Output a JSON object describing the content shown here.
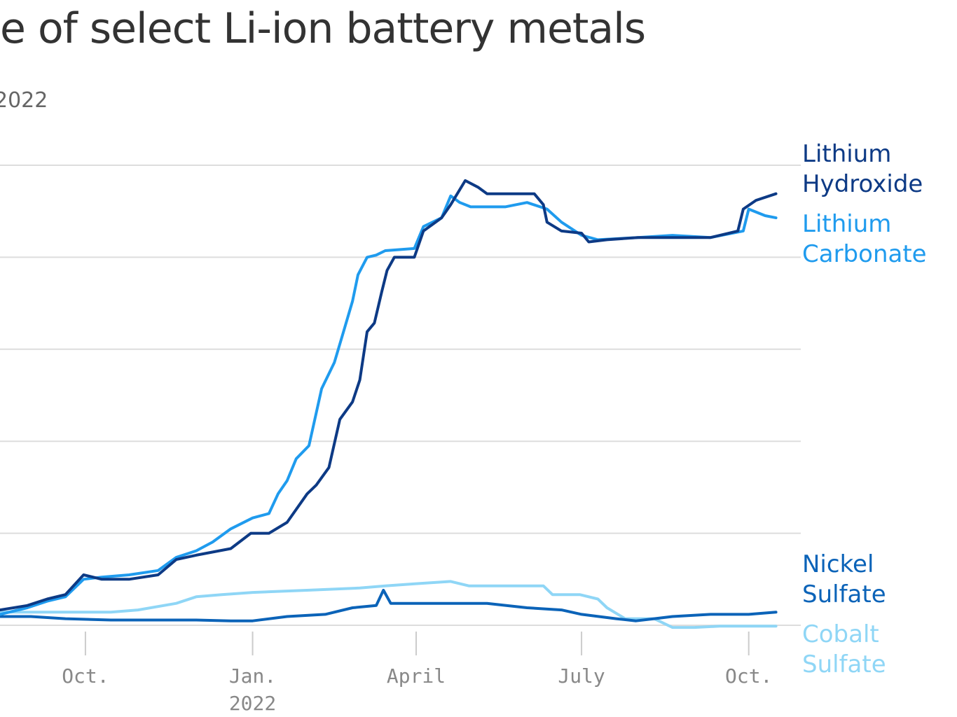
{
  "title": "ce of select Li-ion battery metals",
  "subtitle": "2022",
  "chart_data": {
    "type": "line",
    "title": "ce of select Li-ion battery metals",
    "subtitle": "2022",
    "xlabel": "",
    "ylabel": "",
    "grid": true,
    "legend": "right, labels at line ends",
    "y_gridlines": 6,
    "ylim": [
      0,
      105
    ],
    "xlim": [
      "2021-08-15",
      "2022-10-20"
    ],
    "x_ticks": [
      {
        "date": "2021-10-01",
        "label": "Oct.",
        "sublabel": ""
      },
      {
        "date": "2022-01-01",
        "label": "Jan.",
        "sublabel": "2022"
      },
      {
        "date": "2022-04-01",
        "label": "April",
        "sublabel": ""
      },
      {
        "date": "2022-07-01",
        "label": "July",
        "sublabel": ""
      },
      {
        "date": "2022-10-01",
        "label": "Oct.",
        "sublabel": ""
      }
    ],
    "series": [
      {
        "name": "Lithium Hydroxide",
        "label_lines": [
          "Lithium",
          "Hydroxide"
        ],
        "color": "#0d3a85",
        "points": [
          [
            "2021-08-15",
            3.5
          ],
          [
            "2021-08-30",
            4.5
          ],
          [
            "2021-09-10",
            6
          ],
          [
            "2021-09-20",
            7
          ],
          [
            "2021-09-30",
            11.5
          ],
          [
            "2021-10-10",
            10.5
          ],
          [
            "2021-10-25",
            10.5
          ],
          [
            "2021-11-10",
            11.5
          ],
          [
            "2021-11-20",
            15
          ],
          [
            "2021-12-01",
            16
          ],
          [
            "2021-12-20",
            17.5
          ],
          [
            "2021-12-31",
            21
          ],
          [
            "2022-01-10",
            21
          ],
          [
            "2022-01-20",
            23.5
          ],
          [
            "2022-01-31",
            30
          ],
          [
            "2022-02-05",
            32
          ],
          [
            "2022-02-12",
            36
          ],
          [
            "2022-02-18",
            47
          ],
          [
            "2022-02-25",
            51
          ],
          [
            "2022-03-01",
            56
          ],
          [
            "2022-03-05",
            67
          ],
          [
            "2022-03-09",
            69
          ],
          [
            "2022-03-13",
            76
          ],
          [
            "2022-03-16",
            81
          ],
          [
            "2022-03-20",
            84
          ],
          [
            "2022-03-31",
            84
          ],
          [
            "2022-04-05",
            90
          ],
          [
            "2022-04-15",
            93
          ],
          [
            "2022-04-20",
            96
          ],
          [
            "2022-04-28",
            101.5
          ],
          [
            "2022-05-05",
            100
          ],
          [
            "2022-05-10",
            98.5
          ],
          [
            "2022-06-05",
            98.5
          ],
          [
            "2022-06-10",
            96
          ],
          [
            "2022-06-12",
            92
          ],
          [
            "2022-06-20",
            90
          ],
          [
            "2022-07-01",
            89.5
          ],
          [
            "2022-07-05",
            87.5
          ],
          [
            "2022-07-15",
            88
          ],
          [
            "2022-08-01",
            88.5
          ],
          [
            "2022-08-20",
            88.5
          ],
          [
            "2022-09-10",
            88.5
          ],
          [
            "2022-09-25",
            90
          ],
          [
            "2022-09-28",
            95
          ],
          [
            "2022-10-05",
            97
          ],
          [
            "2022-10-16",
            98.5
          ]
        ]
      },
      {
        "name": "Lithium Carbonate",
        "label_lines": [
          "Lithium",
          "Carbonate"
        ],
        "color": "#1f9bee",
        "points": [
          [
            "2021-08-15",
            2.5
          ],
          [
            "2021-08-30",
            4
          ],
          [
            "2021-09-10",
            5.5
          ],
          [
            "2021-09-20",
            6.5
          ],
          [
            "2021-09-30",
            10.5
          ],
          [
            "2021-10-10",
            11
          ],
          [
            "2021-10-25",
            11.5
          ],
          [
            "2021-11-10",
            12.5
          ],
          [
            "2021-11-20",
            15.5
          ],
          [
            "2021-12-01",
            17
          ],
          [
            "2021-12-10",
            19
          ],
          [
            "2021-12-20",
            22
          ],
          [
            "2022-01-01",
            24.5
          ],
          [
            "2022-01-10",
            25.5
          ],
          [
            "2022-01-15",
            30
          ],
          [
            "2022-01-20",
            33
          ],
          [
            "2022-01-25",
            38
          ],
          [
            "2022-02-01",
            41
          ],
          [
            "2022-02-08",
            54
          ],
          [
            "2022-02-15",
            60
          ],
          [
            "2022-02-20",
            67
          ],
          [
            "2022-02-25",
            74
          ],
          [
            "2022-02-28",
            80
          ],
          [
            "2022-03-05",
            84
          ],
          [
            "2022-03-10",
            84.5
          ],
          [
            "2022-03-15",
            85.5
          ],
          [
            "2022-03-31",
            86
          ],
          [
            "2022-04-05",
            91
          ],
          [
            "2022-04-15",
            93
          ],
          [
            "2022-04-20",
            98
          ],
          [
            "2022-04-25",
            96.5
          ],
          [
            "2022-05-01",
            95.5
          ],
          [
            "2022-05-20",
            95.5
          ],
          [
            "2022-06-01",
            96.5
          ],
          [
            "2022-06-12",
            95
          ],
          [
            "2022-06-20",
            92
          ],
          [
            "2022-07-01",
            89
          ],
          [
            "2022-07-10",
            88
          ],
          [
            "2022-08-01",
            88.5
          ],
          [
            "2022-08-20",
            89
          ],
          [
            "2022-09-10",
            88.5
          ],
          [
            "2022-09-28",
            90
          ],
          [
            "2022-10-01",
            95
          ],
          [
            "2022-10-10",
            93.5
          ],
          [
            "2022-10-16",
            93
          ]
        ]
      },
      {
        "name": "Nickel Sulfate",
        "label_lines": [
          "Nickel",
          "Sulfate"
        ],
        "color": "#0b63b8",
        "points": [
          [
            "2021-08-15",
            2
          ],
          [
            "2021-09-01",
            2
          ],
          [
            "2021-09-20",
            1.5
          ],
          [
            "2021-10-15",
            1.2
          ],
          [
            "2021-11-01",
            1.2
          ],
          [
            "2021-12-01",
            1.2
          ],
          [
            "2021-12-20",
            1.0
          ],
          [
            "2022-01-01",
            1
          ],
          [
            "2022-01-20",
            2
          ],
          [
            "2022-02-10",
            2.5
          ],
          [
            "2022-02-25",
            4
          ],
          [
            "2022-03-10",
            4.5
          ],
          [
            "2022-03-14",
            8
          ],
          [
            "2022-03-18",
            5
          ],
          [
            "2022-04-01",
            5
          ],
          [
            "2022-04-20",
            5
          ],
          [
            "2022-05-10",
            5
          ],
          [
            "2022-06-01",
            4
          ],
          [
            "2022-06-20",
            3.5
          ],
          [
            "2022-07-01",
            2.5
          ],
          [
            "2022-07-20",
            1.5
          ],
          [
            "2022-07-31",
            1
          ],
          [
            "2022-08-10",
            1.5
          ],
          [
            "2022-08-20",
            2
          ],
          [
            "2022-09-10",
            2.5
          ],
          [
            "2022-10-01",
            2.5
          ],
          [
            "2022-10-16",
            3
          ]
        ]
      },
      {
        "name": "Cobalt Sulfate",
        "label_lines": [
          "Cobalt",
          "Sulfate"
        ],
        "color": "#8fd6f6",
        "points": [
          [
            "2021-08-15",
            3
          ],
          [
            "2021-09-01",
            3
          ],
          [
            "2021-10-15",
            3
          ],
          [
            "2021-10-30",
            3.5
          ],
          [
            "2021-11-20",
            5
          ],
          [
            "2021-12-01",
            6.5
          ],
          [
            "2021-12-15",
            7
          ],
          [
            "2022-01-01",
            7.5
          ],
          [
            "2022-02-01",
            8
          ],
          [
            "2022-03-01",
            8.5
          ],
          [
            "2022-03-15",
            9
          ],
          [
            "2022-04-01",
            9.5
          ],
          [
            "2022-04-20",
            10
          ],
          [
            "2022-04-30",
            9
          ],
          [
            "2022-06-10",
            9
          ],
          [
            "2022-06-15",
            7
          ],
          [
            "2022-06-30",
            7
          ],
          [
            "2022-07-10",
            6
          ],
          [
            "2022-07-15",
            4
          ],
          [
            "2022-07-25",
            1.5
          ],
          [
            "2022-08-10",
            1.5
          ],
          [
            "2022-08-20",
            -0.5
          ],
          [
            "2022-09-01",
            -0.5
          ],
          [
            "2022-09-15",
            -0.2
          ],
          [
            "2022-10-16",
            -0.2
          ]
        ]
      }
    ]
  }
}
